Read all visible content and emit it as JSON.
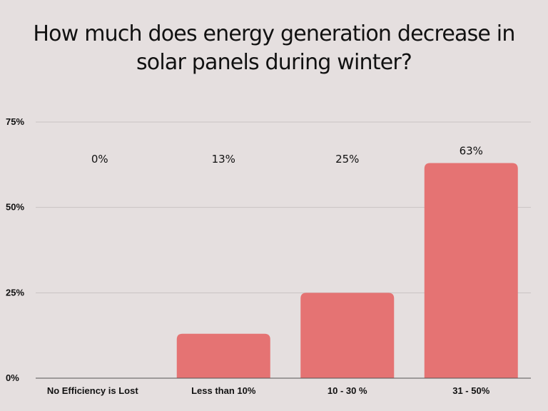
{
  "chart_data": {
    "type": "bar",
    "title": "How much does energy generation decrease in solar panels during winter?",
    "categories": [
      "No Efficiency is Lost",
      "Less than 10%",
      "10 - 30 %",
      "31 - 50%"
    ],
    "values": [
      0,
      13,
      25,
      63
    ],
    "data_labels": [
      "0%",
      "13%",
      "25%",
      "63%"
    ],
    "ylim": [
      0,
      75
    ],
    "yticks": [
      0,
      25,
      50,
      75
    ],
    "ytick_labels": [
      "0%",
      "25%",
      "50%",
      "75%"
    ],
    "xlabel": "",
    "ylabel": "",
    "grid": true,
    "legend": "none",
    "bar_color": "#e57373",
    "background": "#e5dfdf"
  }
}
